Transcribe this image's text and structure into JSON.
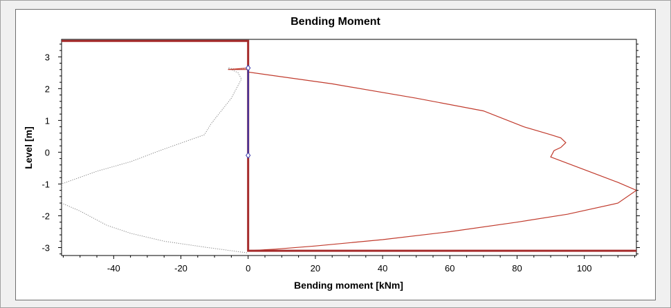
{
  "chart_data": {
    "type": "line",
    "title": "Bending Moment",
    "xlabel": "Bending moment [kNm]",
    "ylabel": "Level [m]",
    "xlim": [
      -55.5,
      115.5
    ],
    "ylim": [
      -3.25,
      3.55
    ],
    "x_ticks": [
      -40,
      -20,
      0,
      20,
      40,
      60,
      80,
      100
    ],
    "y_ticks": [
      3,
      2,
      1,
      0,
      -1,
      -2,
      -3
    ],
    "grid": false,
    "legend": "none",
    "series": [
      {
        "style": "dotted",
        "color": "#808080",
        "points": [
          [
            0,
            2.65
          ],
          [
            -3,
            2.6
          ],
          [
            -6,
            2.65
          ],
          [
            -3,
            2.5
          ],
          [
            -2,
            2.3
          ],
          [
            -5,
            1.7
          ],
          [
            -8,
            1.3
          ],
          [
            -11,
            0.9
          ],
          [
            -13,
            0.55
          ],
          [
            -17,
            0.4
          ],
          [
            -25,
            0.1
          ],
          [
            -35,
            -0.3
          ],
          [
            -45,
            -0.6
          ],
          [
            -55.5,
            -1.0
          ],
          [
            -55.5,
            -1.6
          ],
          [
            -50,
            -1.85
          ],
          [
            -42,
            -2.3
          ],
          [
            -35,
            -2.55
          ],
          [
            -25,
            -2.8
          ],
          [
            -12,
            -3.0
          ],
          [
            0,
            -3.17
          ]
        ]
      },
      {
        "style": "solid",
        "color": "#c0392b",
        "points": [
          [
            0,
            3.5
          ],
          [
            0,
            2.6
          ],
          [
            -6,
            2.6
          ],
          [
            0,
            2.65
          ],
          [
            0,
            2.52
          ],
          [
            25,
            2.15
          ],
          [
            50,
            1.7
          ],
          [
            70,
            1.3
          ],
          [
            82,
            0.8
          ],
          [
            90,
            0.55
          ],
          [
            93,
            0.45
          ],
          [
            94.5,
            0.3
          ],
          [
            93,
            0.15
          ],
          [
            91,
            0.05
          ],
          [
            90,
            -0.15
          ],
          [
            100,
            -0.55
          ],
          [
            110,
            -0.95
          ],
          [
            115.5,
            -1.2
          ],
          [
            110,
            -1.6
          ],
          [
            95,
            -1.95
          ],
          [
            80,
            -2.2
          ],
          [
            60,
            -2.5
          ],
          [
            40,
            -2.75
          ],
          [
            20,
            -2.95
          ],
          [
            8,
            -3.05
          ],
          [
            0,
            -3.1
          ]
        ]
      },
      {
        "style": "thick",
        "color": "#a52a2a",
        "points": [
          [
            -55.5,
            3.5
          ],
          [
            0,
            3.5
          ],
          [
            0,
            -3.1
          ],
          [
            115.5,
            -3.1
          ]
        ]
      },
      {
        "style": "solid",
        "color": "#3333aa",
        "points": [
          [
            0,
            2.65
          ],
          [
            0,
            -0.1
          ]
        ],
        "markers": [
          [
            0,
            2.65
          ],
          [
            0,
            -0.1
          ]
        ]
      }
    ]
  }
}
